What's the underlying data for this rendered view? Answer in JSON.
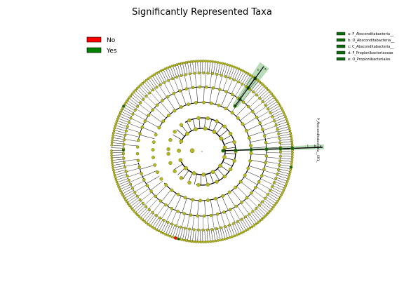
{
  "title": "Significantly Represented Taxa",
  "legend": {
    "items": [
      {
        "label": "No",
        "color": "#ff0000"
      },
      {
        "label": "Yes",
        "color": "#008000"
      }
    ]
  },
  "clade_legend": {
    "items": [
      {
        "label": "a: F_Absconditabacteria__"
      },
      {
        "label": "b: O_Absconditabacteria__"
      },
      {
        "label": "c: C_Absconditabacteria__"
      },
      {
        "label": "d: F_Propionibacteriaceae"
      },
      {
        "label": "e: O_Propionibacteriales"
      }
    ]
  },
  "branch_labels": {
    "right": "P_Absconditabacteria__SR1_"
  },
  "highlight_letters": {
    "upper": [
      "e",
      "d"
    ],
    "right": [
      "c",
      "b",
      "a"
    ]
  },
  "colors": {
    "node": "#b5b91a",
    "node_edge": "#6f7210",
    "highlight": "#0d6b0d",
    "highlight_shade": "#7fbf7f",
    "no": "#ff0000",
    "yes": "#008000",
    "edge": "#000000"
  }
}
